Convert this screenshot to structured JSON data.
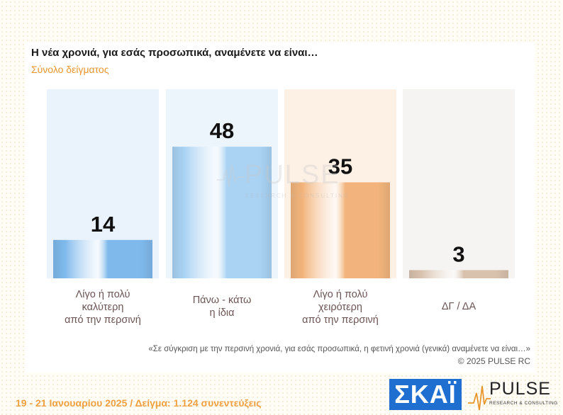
{
  "header": {
    "title": "Η νέα χρονιά, για εσάς προσωπικά, αναμένετε να είναι…",
    "subtitle": "Σύνολο δείγματος"
  },
  "chart_data": {
    "type": "bar",
    "categories": [
      [
        "Λίγο ή πολύ",
        "καλύτερη",
        "από την περσινή"
      ],
      [
        "Πάνω - κάτω",
        "η ίδια"
      ],
      [
        "Λίγο ή πολύ",
        "χειρότερη",
        "από την περσινή"
      ],
      [
        "ΔΓ / ΔΑ"
      ]
    ],
    "values": [
      14,
      48,
      35,
      3
    ],
    "ylim": [
      0,
      100
    ],
    "grid": false,
    "colors": {
      "bars": [
        "#7fb9ec",
        "#a9d2f3",
        "#f2b47c",
        "#d8c1ad"
      ],
      "panels": [
        "#eaf3fb",
        "#edf5fc",
        "#fdf0e5",
        "#f6f4f2"
      ],
      "value_text": "#111111",
      "category_text": "#6b5454"
    }
  },
  "notes": {
    "question": "«Σε σύγκριση με την περσινή χρονιά, για εσάς προσωπικά, η φετινή χρονιά (γενικά) αναμένετε να είναι…»",
    "copyright": "©  2025  PULSE RC"
  },
  "footer": {
    "text": "19 - 21 Ιανουαρίου 2025  /  Δείγμα:  1.124 συνεντεύξεις"
  },
  "logos": {
    "skai": "ΣΚΑΪ",
    "pulse": "PULSE",
    "pulse_tagline": "RESEARCH & CONSULTING"
  },
  "watermark": {
    "word": "PULSE",
    "tagline": "RESEARCH & CONSULTING"
  }
}
